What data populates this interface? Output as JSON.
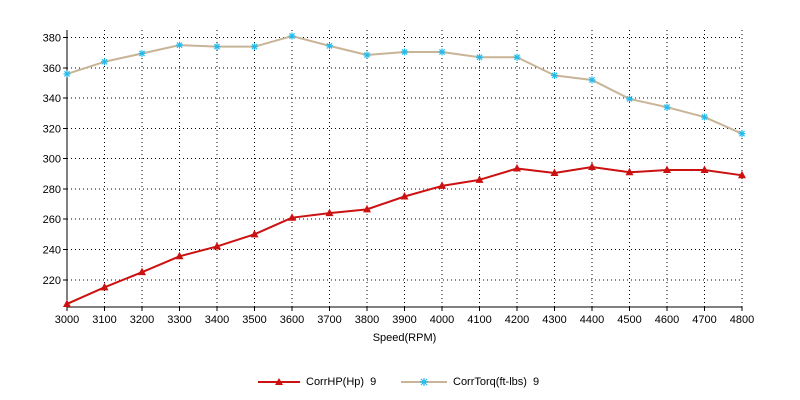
{
  "chart_data": {
    "type": "line",
    "xlabel": "Speed(RPM)",
    "x": [
      3000,
      3100,
      3200,
      3300,
      3400,
      3500,
      3600,
      3700,
      3800,
      3900,
      4000,
      4100,
      4200,
      4300,
      4400,
      4500,
      4600,
      4700,
      4800
    ],
    "xlim": [
      3000,
      4800
    ],
    "ylim": [
      202,
      385
    ],
    "yticks": [
      220,
      240,
      260,
      280,
      300,
      320,
      340,
      360,
      380
    ],
    "grid": true,
    "legend_position": "bottom",
    "series": [
      {
        "name": "CorrHP(Hp)",
        "suffix": "9",
        "color": "#cc1111",
        "marker": "triangle",
        "values": [
          204,
          215,
          225,
          235.5,
          242,
          250,
          261,
          264,
          266.5,
          275,
          282,
          286,
          293.5,
          290.5,
          294.5,
          291,
          292.5,
          292.5,
          289
        ]
      },
      {
        "name": "CorrTorq(ft-lbs)",
        "suffix": "9",
        "color": "#c8b496",
        "marker_color": "#22bbee",
        "marker": "star",
        "values": [
          356,
          364,
          369.5,
          375,
          374,
          374,
          381,
          374.5,
          368.5,
          370.5,
          370.5,
          367,
          367,
          355,
          352,
          339.5,
          334,
          327.5,
          316.5
        ]
      }
    ]
  }
}
